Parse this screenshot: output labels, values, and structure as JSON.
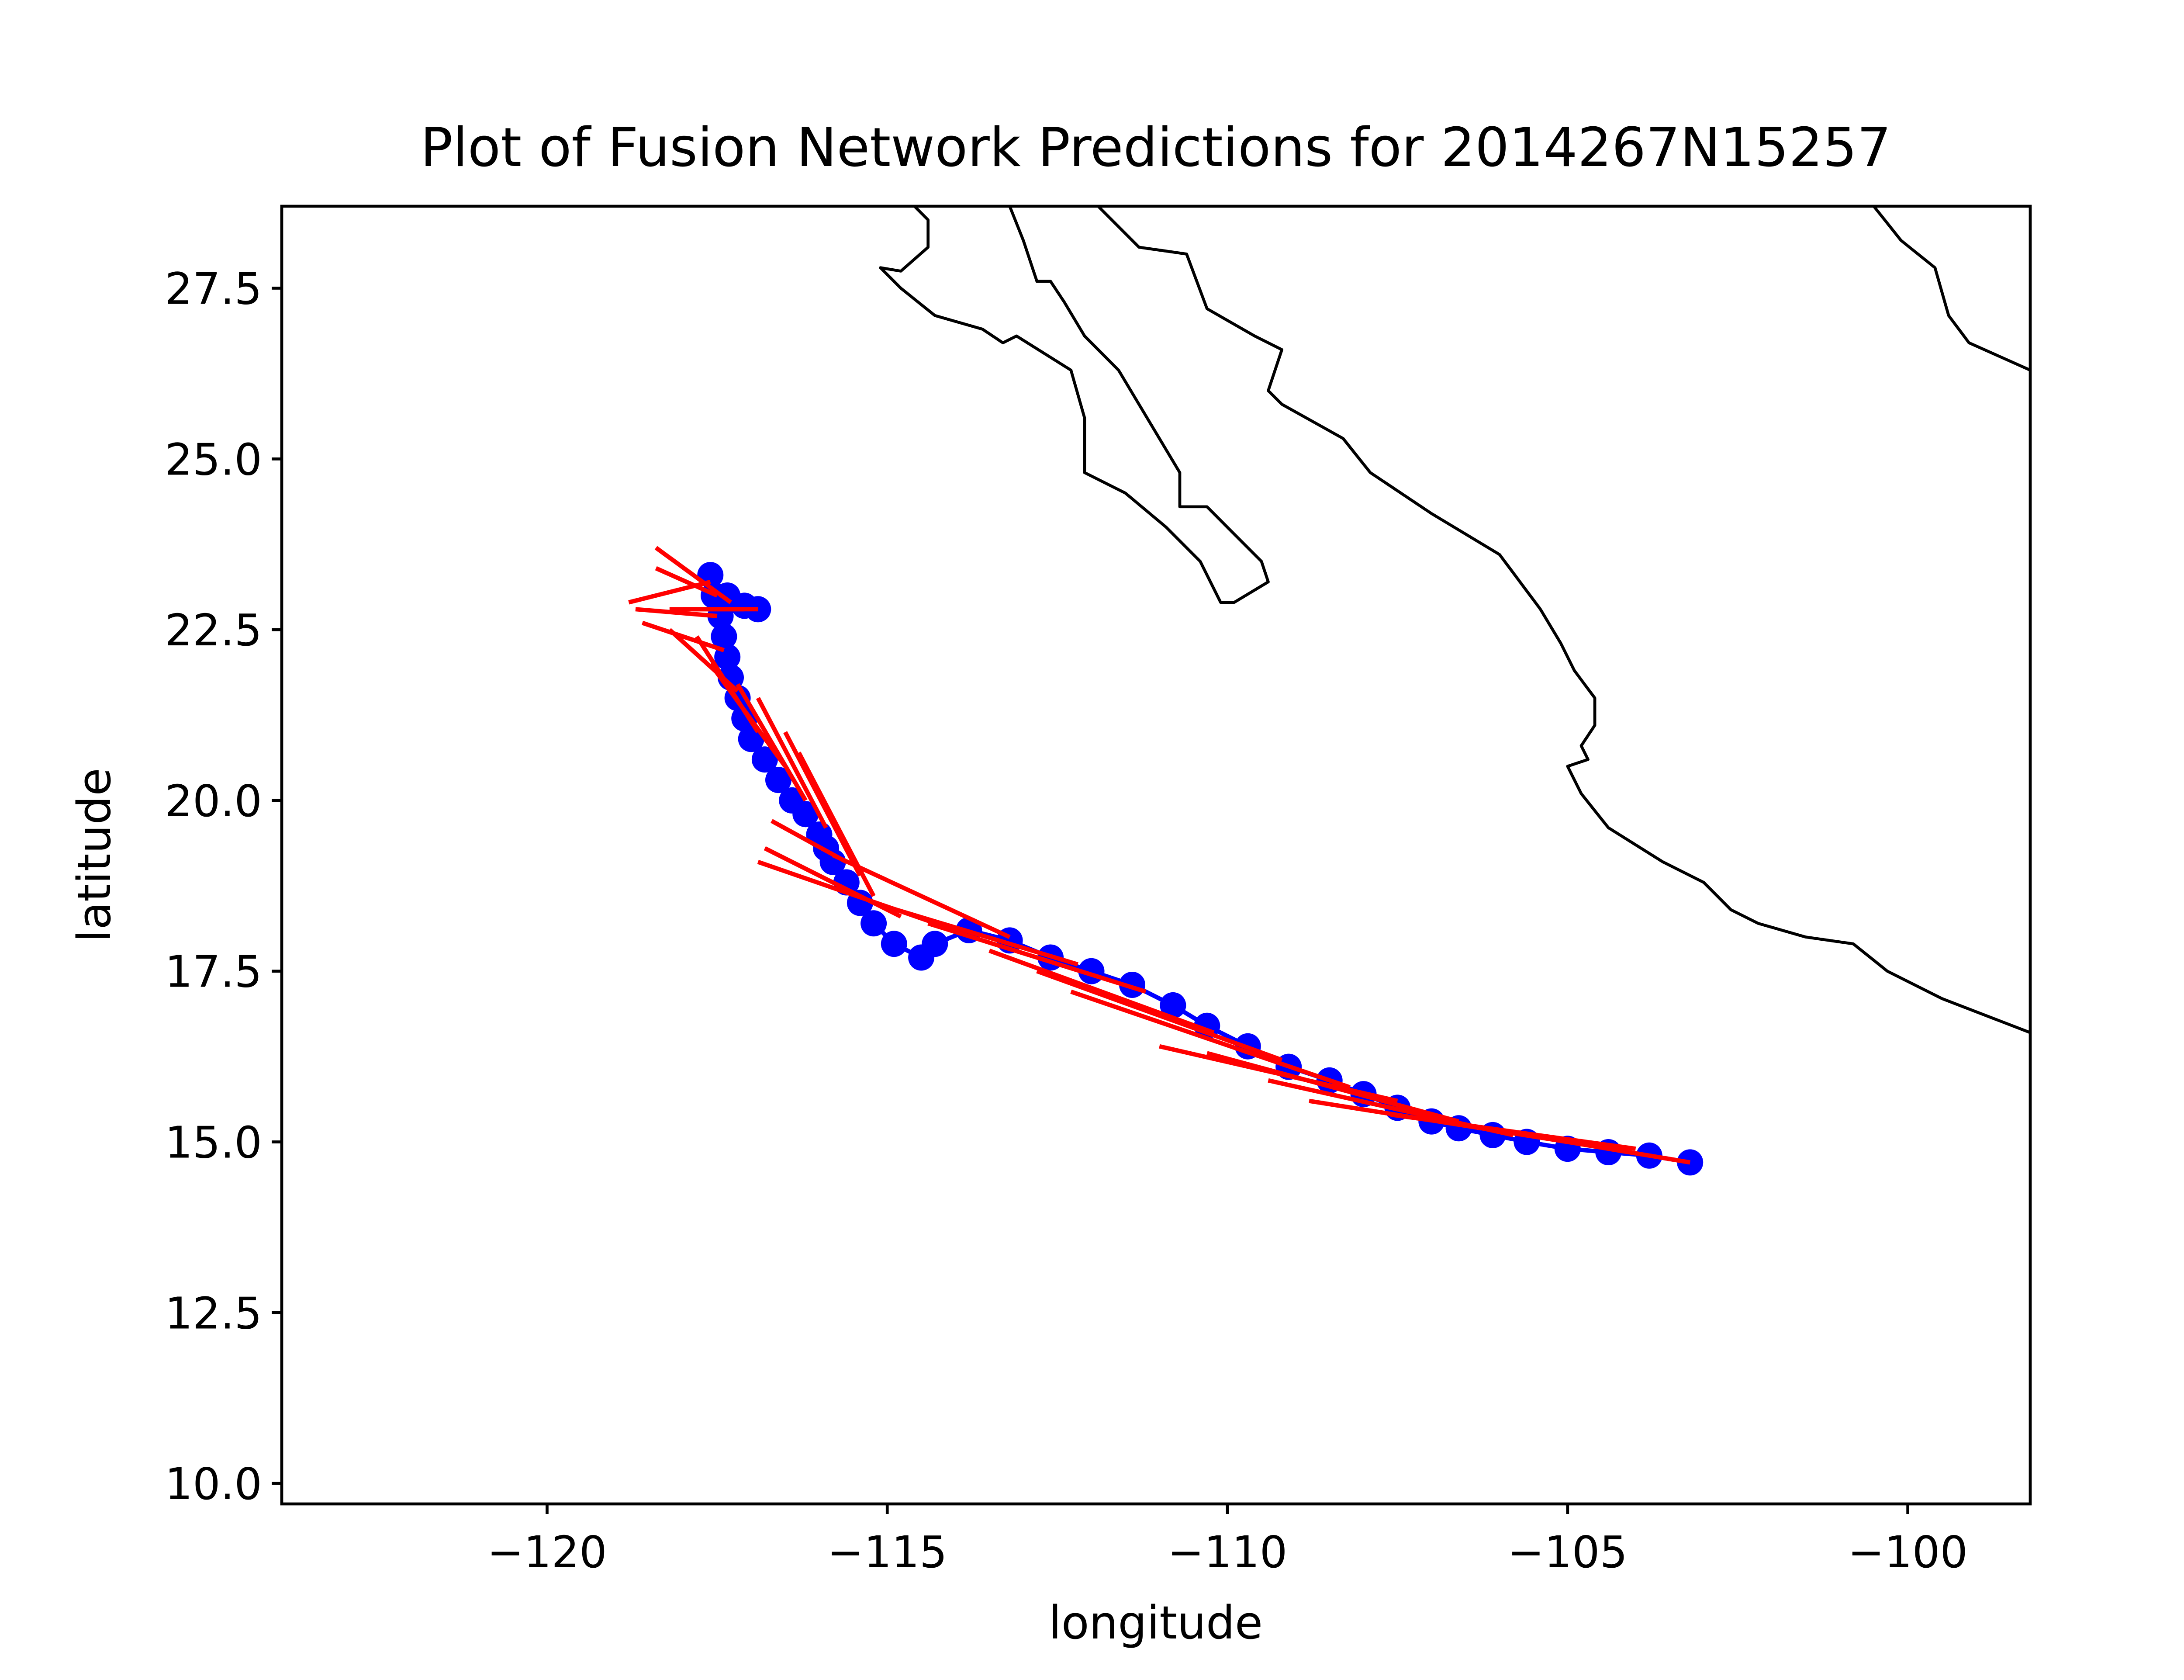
{
  "chart_data": {
    "type": "scatter",
    "title": "Plot of Fusion Network Predictions for 2014267N15257",
    "xlabel": "longitude",
    "ylabel": "latitude",
    "xlim": [
      -123.9,
      -98.2
    ],
    "ylim": [
      9.7,
      28.7
    ],
    "x_ticks": [
      -120,
      -115,
      -110,
      -105,
      -100
    ],
    "x_tick_labels": [
      "−120",
      "−115",
      "−110",
      "−105",
      "−100"
    ],
    "y_ticks": [
      10.0,
      12.5,
      15.0,
      17.5,
      20.0,
      22.5,
      25.0,
      27.5
    ],
    "y_tick_labels": [
      "10.0",
      "12.5",
      "15.0",
      "17.5",
      "20.0",
      "22.5",
      "25.0",
      "27.5"
    ],
    "grid": false,
    "legend": "none",
    "colors": {
      "observed": "#0000ff",
      "predicted": "#ff0000",
      "coastline": "#000000"
    },
    "observed_track": [
      [
        -103.2,
        14.7
      ],
      [
        -103.8,
        14.8
      ],
      [
        -104.4,
        14.85
      ],
      [
        -105.0,
        14.9
      ],
      [
        -105.6,
        15.0
      ],
      [
        -106.1,
        15.1
      ],
      [
        -106.6,
        15.2
      ],
      [
        -107.0,
        15.3
      ],
      [
        -107.5,
        15.5
      ],
      [
        -108.0,
        15.7
      ],
      [
        -108.5,
        15.9
      ],
      [
        -109.1,
        16.1
      ],
      [
        -109.7,
        16.4
      ],
      [
        -110.3,
        16.7
      ],
      [
        -110.8,
        17.0
      ],
      [
        -111.4,
        17.3
      ],
      [
        -112.0,
        17.5
      ],
      [
        -112.6,
        17.7
      ],
      [
        -113.2,
        17.95
      ],
      [
        -113.8,
        18.1
      ],
      [
        -114.3,
        17.9
      ],
      [
        -114.5,
        17.7
      ],
      [
        -114.9,
        17.9
      ],
      [
        -115.2,
        18.2
      ],
      [
        -115.4,
        18.5
      ],
      [
        -115.6,
        18.8
      ],
      [
        -115.8,
        19.1
      ],
      [
        -115.9,
        19.3
      ],
      [
        -116.0,
        19.5
      ],
      [
        -116.2,
        19.8
      ],
      [
        -116.4,
        20.0
      ],
      [
        -116.6,
        20.3
      ],
      [
        -116.8,
        20.6
      ],
      [
        -117.0,
        20.9
      ],
      [
        -117.1,
        21.2
      ],
      [
        -117.2,
        21.5
      ],
      [
        -117.3,
        21.8
      ],
      [
        -117.35,
        22.1
      ],
      [
        -117.4,
        22.4
      ],
      [
        -117.45,
        22.7
      ],
      [
        -117.55,
        23.0
      ],
      [
        -117.6,
        23.3
      ],
      [
        -117.35,
        23.0
      ],
      [
        -117.1,
        22.85
      ],
      [
        -116.9,
        22.8
      ]
    ],
    "predicted_segments": [
      [
        [
          -103.2,
          14.7
        ],
        [
          -106.8,
          15.3
        ]
      ],
      [
        [
          -104.0,
          14.9
        ],
        [
          -107.6,
          15.4
        ]
      ],
      [
        [
          -105.0,
          15.0
        ],
        [
          -108.8,
          15.6
        ]
      ],
      [
        [
          -105.8,
          15.1
        ],
        [
          -109.4,
          15.9
        ]
      ],
      [
        [
          -106.6,
          15.3
        ],
        [
          -110.3,
          16.3
        ]
      ],
      [
        [
          -107.5,
          15.6
        ],
        [
          -111.0,
          16.4
        ]
      ],
      [
        [
          -108.2,
          15.8
        ],
        [
          -112.3,
          17.2
        ]
      ],
      [
        [
          -109.2,
          16.2
        ],
        [
          -112.8,
          17.5
        ]
      ],
      [
        [
          -110.2,
          16.6
        ],
        [
          -113.5,
          17.8
        ]
      ],
      [
        [
          -111.2,
          17.2
        ],
        [
          -114.4,
          18.2
        ]
      ],
      [
        [
          -112.2,
          17.6
        ],
        [
          -115.2,
          18.5
        ]
      ],
      [
        [
          -113.2,
          18.0
        ],
        [
          -115.8,
          19.2
        ]
      ],
      [
        [
          -114.0,
          18.1
        ],
        [
          -116.9,
          19.1
        ]
      ],
      [
        [
          -114.8,
          18.3
        ],
        [
          -116.8,
          19.3
        ]
      ],
      [
        [
          -115.2,
          18.6
        ],
        [
          -116.3,
          20.7
        ]
      ],
      [
        [
          -115.4,
          18.9
        ],
        [
          -116.5,
          21.0
        ]
      ],
      [
        [
          -115.6,
          19.1
        ],
        [
          -116.7,
          19.7
        ]
      ],
      [
        [
          -115.9,
          19.6
        ],
        [
          -116.9,
          21.5
        ]
      ],
      [
        [
          -116.2,
          20.0
        ],
        [
          -117.2,
          21.7
        ]
      ],
      [
        [
          -116.5,
          20.5
        ],
        [
          -117.6,
          22.0
        ]
      ],
      [
        [
          -116.9,
          21.0
        ],
        [
          -117.8,
          22.4
        ]
      ],
      [
        [
          -117.2,
          21.6
        ],
        [
          -118.2,
          22.5
        ]
      ],
      [
        [
          -117.4,
          22.2
        ],
        [
          -118.6,
          22.6
        ]
      ],
      [
        [
          -117.5,
          22.7
        ],
        [
          -118.7,
          22.8
        ]
      ],
      [
        [
          -117.6,
          23.2
        ],
        [
          -118.8,
          22.9
        ]
      ],
      [
        [
          -117.5,
          23.0
        ],
        [
          -118.4,
          23.4
        ]
      ],
      [
        [
          -117.3,
          22.9
        ],
        [
          -118.4,
          23.7
        ]
      ],
      [
        [
          -117.1,
          22.8
        ],
        [
          -118.2,
          22.8
        ]
      ],
      [
        [
          -116.9,
          22.8
        ],
        [
          -118.0,
          22.8
        ]
      ]
    ]
  },
  "coastlines": [
    [
      [
        -114.6,
        28.7
      ],
      [
        -114.4,
        28.5
      ],
      [
        -114.4,
        28.1
      ],
      [
        -114.8,
        27.75
      ],
      [
        -115.1,
        27.8
      ],
      [
        -114.8,
        27.5
      ],
      [
        -114.3,
        27.1
      ],
      [
        -113.6,
        26.9
      ],
      [
        -113.3,
        26.7
      ],
      [
        -113.1,
        26.8
      ],
      [
        -112.3,
        26.3
      ],
      [
        -112.1,
        25.6
      ],
      [
        -112.1,
        24.8
      ],
      [
        -111.5,
        24.5
      ],
      [
        -110.9,
        24.0
      ],
      [
        -110.4,
        23.5
      ],
      [
        -110.1,
        22.9
      ],
      [
        -109.9,
        22.9
      ],
      [
        -109.4,
        23.2
      ],
      [
        -109.5,
        23.5
      ],
      [
        -110.0,
        24.0
      ],
      [
        -110.3,
        24.3
      ],
      [
        -110.7,
        24.3
      ],
      [
        -110.7,
        24.8
      ],
      [
        -111.0,
        25.3
      ],
      [
        -111.6,
        26.3
      ],
      [
        -112.1,
        26.8
      ],
      [
        -112.4,
        27.3
      ],
      [
        -112.6,
        27.6
      ],
      [
        -112.8,
        27.6
      ],
      [
        -113.0,
        28.2
      ],
      [
        -113.2,
        28.7
      ]
    ],
    [
      [
        -111.9,
        28.7
      ],
      [
        -111.3,
        28.1
      ],
      [
        -110.6,
        28.0
      ],
      [
        -110.3,
        27.2
      ],
      [
        -109.6,
        26.8
      ],
      [
        -109.2,
        26.6
      ],
      [
        -109.4,
        26.0
      ],
      [
        -109.2,
        25.8
      ],
      [
        -108.3,
        25.3
      ],
      [
        -107.9,
        24.8
      ],
      [
        -107.0,
        24.2
      ],
      [
        -106.0,
        23.6
      ],
      [
        -105.4,
        22.8
      ],
      [
        -105.1,
        22.3
      ],
      [
        -104.9,
        21.9
      ],
      [
        -104.6,
        21.5
      ],
      [
        -104.6,
        21.1
      ],
      [
        -104.8,
        20.8
      ],
      [
        -104.7,
        20.6
      ],
      [
        -105.0,
        20.5
      ],
      [
        -104.8,
        20.1
      ],
      [
        -104.4,
        19.6
      ],
      [
        -103.6,
        19.1
      ],
      [
        -103.0,
        18.8
      ],
      [
        -102.6,
        18.4
      ],
      [
        -102.2,
        18.2
      ],
      [
        -101.5,
        18.0
      ],
      [
        -100.8,
        17.9
      ],
      [
        -100.3,
        17.5
      ],
      [
        -99.5,
        17.1
      ],
      [
        -98.2,
        16.6
      ]
    ],
    [
      [
        -100.5,
        28.7
      ],
      [
        -100.1,
        28.2
      ],
      [
        -99.6,
        27.8
      ],
      [
        -99.4,
        27.1
      ],
      [
        -99.1,
        26.7
      ],
      [
        -98.2,
        26.3
      ]
    ]
  ]
}
